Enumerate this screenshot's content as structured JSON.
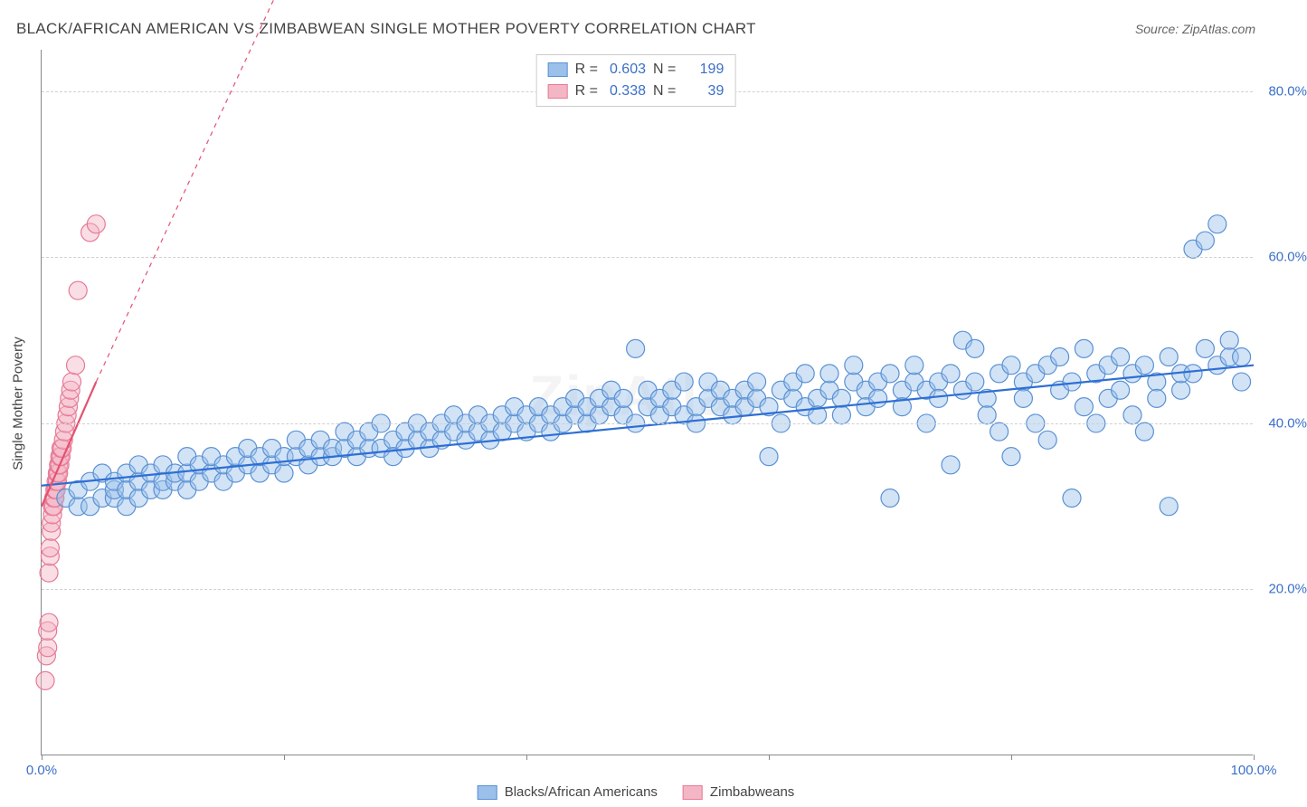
{
  "title": "BLACK/AFRICAN AMERICAN VS ZIMBABWEAN SINGLE MOTHER POVERTY CORRELATION CHART",
  "source_prefix": "Source: ",
  "source_name": "ZipAtlas.com",
  "watermark": "ZipAtlas",
  "y_axis_label": "Single Mother Poverty",
  "chart": {
    "type": "scatter",
    "xlim": [
      0,
      100
    ],
    "ylim": [
      0,
      85
    ],
    "x_ticks": [
      0,
      20,
      40,
      60,
      80,
      100
    ],
    "x_tick_labels": [
      "0.0%",
      "",
      "",
      "",
      "",
      "100.0%"
    ],
    "y_ticks": [
      20,
      40,
      60,
      80
    ],
    "y_tick_labels": [
      "20.0%",
      "40.0%",
      "60.0%",
      "80.0%"
    ],
    "grid_color": "#d0d0d0",
    "axis_color": "#888888",
    "background_color": "#ffffff",
    "tick_label_color": "#3a6fc7",
    "marker_radius": 10,
    "marker_opacity": 0.45,
    "stroke_width": 1.2
  },
  "series": [
    {
      "name": "Blacks/African Americans",
      "short": "blue",
      "fill_color": "#9bc0ea",
      "stroke_color": "#5a91d4",
      "line_color": "#2e6fd4",
      "r_label": "R =",
      "r_value": "0.603",
      "n_label": "N =",
      "n_value": "199",
      "trend": {
        "x1": 0,
        "y1": 32.5,
        "x2": 100,
        "y2": 47,
        "dash": "none",
        "width": 2.2
      },
      "points": [
        [
          2,
          31
        ],
        [
          3,
          30
        ],
        [
          3,
          32
        ],
        [
          4,
          30
        ],
        [
          4,
          33
        ],
        [
          5,
          31
        ],
        [
          5,
          34
        ],
        [
          6,
          31
        ],
        [
          6,
          32
        ],
        [
          6,
          33
        ],
        [
          7,
          30
        ],
        [
          7,
          32
        ],
        [
          7,
          34
        ],
        [
          8,
          31
        ],
        [
          8,
          33
        ],
        [
          8,
          35
        ],
        [
          9,
          32
        ],
        [
          9,
          34
        ],
        [
          10,
          32
        ],
        [
          10,
          33
        ],
        [
          10,
          35
        ],
        [
          11,
          33
        ],
        [
          11,
          34
        ],
        [
          12,
          32
        ],
        [
          12,
          34
        ],
        [
          12,
          36
        ],
        [
          13,
          33
        ],
        [
          13,
          35
        ],
        [
          14,
          34
        ],
        [
          14,
          36
        ],
        [
          15,
          33
        ],
        [
          15,
          35
        ],
        [
          16,
          34
        ],
        [
          16,
          36
        ],
        [
          17,
          35
        ],
        [
          17,
          37
        ],
        [
          18,
          34
        ],
        [
          18,
          36
        ],
        [
          19,
          35
        ],
        [
          19,
          37
        ],
        [
          20,
          34
        ],
        [
          20,
          36
        ],
        [
          21,
          36
        ],
        [
          21,
          38
        ],
        [
          22,
          35
        ],
        [
          22,
          37
        ],
        [
          23,
          36
        ],
        [
          23,
          38
        ],
        [
          24,
          36
        ],
        [
          24,
          37
        ],
        [
          25,
          37
        ],
        [
          25,
          39
        ],
        [
          26,
          36
        ],
        [
          26,
          38
        ],
        [
          27,
          37
        ],
        [
          27,
          39
        ],
        [
          28,
          37
        ],
        [
          28,
          40
        ],
        [
          29,
          38
        ],
        [
          29,
          36
        ],
        [
          30,
          37
        ],
        [
          30,
          39
        ],
        [
          31,
          38
        ],
        [
          31,
          40
        ],
        [
          32,
          37
        ],
        [
          32,
          39
        ],
        [
          33,
          38
        ],
        [
          33,
          40
        ],
        [
          34,
          39
        ],
        [
          34,
          41
        ],
        [
          35,
          38
        ],
        [
          35,
          40
        ],
        [
          36,
          39
        ],
        [
          36,
          41
        ],
        [
          37,
          38
        ],
        [
          37,
          40
        ],
        [
          38,
          39
        ],
        [
          38,
          41
        ],
        [
          39,
          40
        ],
        [
          39,
          42
        ],
        [
          40,
          39
        ],
        [
          40,
          41
        ],
        [
          41,
          40
        ],
        [
          41,
          42
        ],
        [
          42,
          39
        ],
        [
          42,
          41
        ],
        [
          43,
          40
        ],
        [
          43,
          42
        ],
        [
          44,
          41
        ],
        [
          44,
          43
        ],
        [
          45,
          40
        ],
        [
          45,
          42
        ],
        [
          46,
          41
        ],
        [
          46,
          43
        ],
        [
          47,
          42
        ],
        [
          47,
          44
        ],
        [
          48,
          41
        ],
        [
          48,
          43
        ],
        [
          49,
          49
        ],
        [
          49,
          40
        ],
        [
          50,
          42
        ],
        [
          50,
          44
        ],
        [
          51,
          41
        ],
        [
          51,
          43
        ],
        [
          52,
          42
        ],
        [
          52,
          44
        ],
        [
          53,
          41
        ],
        [
          53,
          45
        ],
        [
          54,
          42
        ],
        [
          54,
          40
        ],
        [
          55,
          43
        ],
        [
          55,
          45
        ],
        [
          56,
          42
        ],
        [
          56,
          44
        ],
        [
          57,
          43
        ],
        [
          57,
          41
        ],
        [
          58,
          44
        ],
        [
          58,
          42
        ],
        [
          59,
          43
        ],
        [
          59,
          45
        ],
        [
          60,
          36
        ],
        [
          60,
          42
        ],
        [
          61,
          44
        ],
        [
          61,
          40
        ],
        [
          62,
          43
        ],
        [
          62,
          45
        ],
        [
          63,
          42
        ],
        [
          63,
          46
        ],
        [
          64,
          43
        ],
        [
          64,
          41
        ],
        [
          65,
          44
        ],
        [
          65,
          46
        ],
        [
          66,
          43
        ],
        [
          66,
          41
        ],
        [
          67,
          45
        ],
        [
          67,
          47
        ],
        [
          68,
          44
        ],
        [
          68,
          42
        ],
        [
          69,
          45
        ],
        [
          69,
          43
        ],
        [
          70,
          31
        ],
        [
          70,
          46
        ],
        [
          71,
          44
        ],
        [
          71,
          42
        ],
        [
          72,
          45
        ],
        [
          72,
          47
        ],
        [
          73,
          44
        ],
        [
          73,
          40
        ],
        [
          74,
          45
        ],
        [
          74,
          43
        ],
        [
          75,
          35
        ],
        [
          75,
          46
        ],
        [
          76,
          50
        ],
        [
          76,
          44
        ],
        [
          77,
          45
        ],
        [
          77,
          49
        ],
        [
          78,
          43
        ],
        [
          78,
          41
        ],
        [
          79,
          46
        ],
        [
          79,
          39
        ],
        [
          80,
          36
        ],
        [
          80,
          47
        ],
        [
          81,
          45
        ],
        [
          81,
          43
        ],
        [
          82,
          46
        ],
        [
          82,
          40
        ],
        [
          83,
          47
        ],
        [
          83,
          38
        ],
        [
          84,
          48
        ],
        [
          84,
          44
        ],
        [
          85,
          45
        ],
        [
          85,
          31
        ],
        [
          86,
          49
        ],
        [
          86,
          42
        ],
        [
          87,
          40
        ],
        [
          87,
          46
        ],
        [
          88,
          47
        ],
        [
          88,
          43
        ],
        [
          89,
          44
        ],
        [
          89,
          48
        ],
        [
          90,
          41
        ],
        [
          90,
          46
        ],
        [
          91,
          39
        ],
        [
          91,
          47
        ],
        [
          92,
          45
        ],
        [
          92,
          43
        ],
        [
          93,
          48
        ],
        [
          93,
          30
        ],
        [
          94,
          44
        ],
        [
          94,
          46
        ],
        [
          95,
          61
        ],
        [
          95,
          46
        ],
        [
          96,
          49
        ],
        [
          96,
          62
        ],
        [
          97,
          64
        ],
        [
          97,
          47
        ],
        [
          98,
          48
        ],
        [
          98,
          50
        ],
        [
          99,
          45
        ],
        [
          99,
          48
        ]
      ]
    },
    {
      "name": "Zimbabweans",
      "short": "pink",
      "fill_color": "#f4b6c5",
      "stroke_color": "#e67a96",
      "line_color": "#e5516f",
      "r_label": "R =",
      "r_value": "0.338",
      "n_label": "N =",
      "n_value": "39",
      "trend": {
        "x1": 0,
        "y1": 30,
        "x2": 4.5,
        "y2": 45,
        "dash": "none",
        "width": 2.2
      },
      "trend_ext": {
        "x1": 4.5,
        "y1": 45,
        "x2": 22,
        "y2": 100,
        "dash": "5,5",
        "width": 1.2
      },
      "points": [
        [
          0.3,
          9
        ],
        [
          0.4,
          12
        ],
        [
          0.5,
          13
        ],
        [
          0.5,
          15
        ],
        [
          0.6,
          16
        ],
        [
          0.6,
          22
        ],
        [
          0.7,
          24
        ],
        [
          0.7,
          25
        ],
        [
          0.8,
          27
        ],
        [
          0.8,
          28
        ],
        [
          0.9,
          29
        ],
        [
          0.9,
          30
        ],
        [
          1.0,
          30
        ],
        [
          1.0,
          31
        ],
        [
          1.1,
          31
        ],
        [
          1.1,
          32
        ],
        [
          1.2,
          32
        ],
        [
          1.2,
          33
        ],
        [
          1.3,
          33
        ],
        [
          1.3,
          34
        ],
        [
          1.4,
          34
        ],
        [
          1.4,
          35
        ],
        [
          1.5,
          35
        ],
        [
          1.5,
          36
        ],
        [
          1.6,
          36
        ],
        [
          1.6,
          37
        ],
        [
          1.7,
          37
        ],
        [
          1.8,
          38
        ],
        [
          1.9,
          39
        ],
        [
          2.0,
          40
        ],
        [
          2.1,
          41
        ],
        [
          2.2,
          42
        ],
        [
          2.3,
          43
        ],
        [
          2.4,
          44
        ],
        [
          2.5,
          45
        ],
        [
          2.8,
          47
        ],
        [
          3.0,
          56
        ],
        [
          4.0,
          63
        ],
        [
          4.5,
          64
        ]
      ]
    }
  ],
  "bottom_legend": [
    {
      "label": "Blacks/African Americans",
      "fill": "#9bc0ea",
      "stroke": "#5a91d4"
    },
    {
      "label": "Zimbabweans",
      "fill": "#f4b6c5",
      "stroke": "#e67a96"
    }
  ]
}
